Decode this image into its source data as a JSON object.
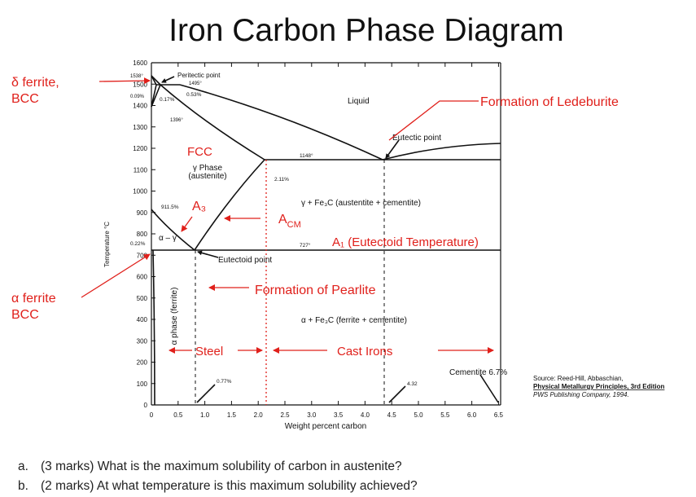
{
  "title": "Iron Carbon Phase Diagram",
  "axis": {
    "y_label": "Temperature °C",
    "x_label": "Weight percent carbon",
    "yticks": [
      "0",
      "100",
      "200",
      "300",
      "400",
      "500",
      "600",
      "700",
      "800",
      "900",
      "1000",
      "1100",
      "1200",
      "1300",
      "1400",
      "1500",
      "1600"
    ],
    "xticks": [
      "0",
      "0.5",
      "1.0",
      "1.5",
      "2.0",
      "2.5",
      "3.0",
      "3.5",
      "4.0",
      "4.5",
      "5.0",
      "5.5",
      "6.0",
      "6.5"
    ]
  },
  "labels": {
    "peritectic_point": "Peritectic point",
    "t1495": "1495°",
    "t1538": "1538°",
    "c009": "0.09%",
    "c017": "0.17%",
    "c053": "0.53%",
    "t1396": "1396°",
    "liquid": "Liquid",
    "eutectic_point": "Eutectic point",
    "t1148": "1148°",
    "c211": "2.11%",
    "gamma_phase": "γ Phase",
    "austenite": "(austenite)",
    "gamma_fe3c": "γ + Fe₃C (austentite + cementite)",
    "t9115": "911.5%",
    "c022": "0.22%",
    "alpha_gamma": "α – γ",
    "t727": "727°",
    "eutectoid_point": "Eutectoid point",
    "alpha_fe3c": "α + Fe₃C (ferrite + cementite)",
    "cementite": "Cementite 6.7%",
    "c432": "4.32",
    "c077": "0.77%",
    "alpha_phase": "α phase (ferrite)"
  },
  "annotations": {
    "delta_ferrite": [
      "δ ferrite,",
      "BCC"
    ],
    "alpha_ferrite": [
      "α ferrite",
      "BCC"
    ],
    "ledeburite": "Formation of Ledeburite",
    "fcc": "FCC",
    "a3": "A₃",
    "acm": {
      "main": "A",
      "sub": "CM"
    },
    "a1": "A₁ (Eutectoid Temperature)",
    "pearlite": "Formation of Pearlite",
    "steel": "Steel",
    "cast_irons": "Cast Irons"
  },
  "source": {
    "prefix": "Source: Reed-Hill, Abbaschian, ",
    "book": "Physical Metallurgy Principles, 3rd Edition",
    "suffix": "PWS Publishing Company, 1994."
  },
  "questions": [
    {
      "marker": "a.",
      "text": "(3 marks) What is the maximum solubility of carbon in austenite?"
    },
    {
      "marker": "b.",
      "text": "(2 marks) At what temperature is this maximum solubility achieved?"
    }
  ]
}
